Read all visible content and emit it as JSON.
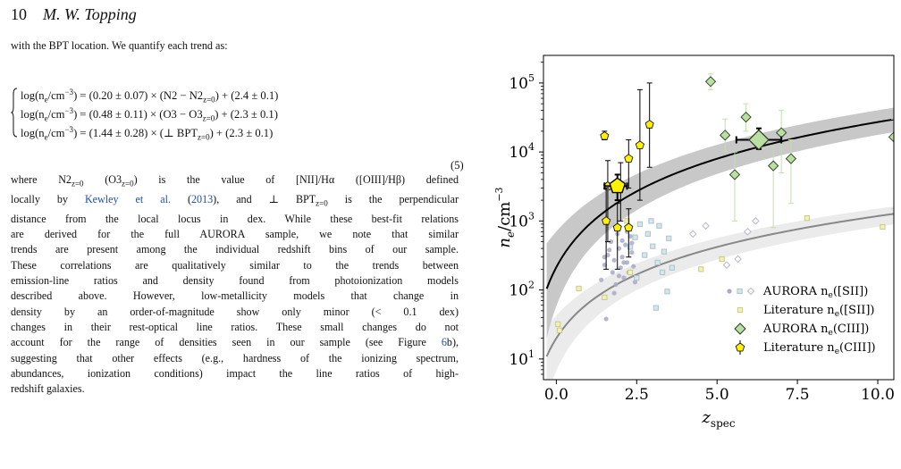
{
  "header": {
    "page_number": "10",
    "author": "M. W. Topping"
  },
  "intro_text": "with the BPT location. We quantify each trend as:",
  "equations": [
    {
      "lhs": "log(n",
      "lhs_sub": "e",
      "lhs_rest": "/cm",
      "lhs_sup": "−3",
      "rhs_a": ") = (0.20 ± 0.07) × (N2 − N2",
      "rhs_sub": "z=0",
      "rhs_b": ") + (2.4 ± 0.1)"
    },
    {
      "lhs": "log(n",
      "lhs_sub": "e",
      "lhs_rest": "/cm",
      "lhs_sup": "−3",
      "rhs_a": ") = (0.48 ± 0.11) × (O3 − O3",
      "rhs_sub": "z=0",
      "rhs_b": ") + (2.3 ± 0.1)"
    },
    {
      "lhs": "log(n",
      "lhs_sub": "e",
      "lhs_rest": "/cm",
      "lhs_sup": "−3",
      "rhs_a": ") = (1.44 ± 0.28) × (⊥ BPT",
      "rhs_sub": "z=0",
      "rhs_b": ") + (2.3 ± 0.1)"
    }
  ],
  "equation_number": "(5)",
  "body_lines": [
    [
      "where N2",
      "z=0",
      " (O3",
      "z=0",
      ") is the value of [NII]/Hα ([OIII]/Hβ) defined"
    ],
    [
      "locally by ",
      "Kewley et al.",
      " (",
      "2013",
      "), and ⊥ BPT",
      "z=0",
      " is the perpendicular"
    ],
    [
      "distance from the local locus in dex. While these best-fit relations"
    ],
    [
      "are derived for the full AURORA sample, we note that similar"
    ],
    [
      "trends are present among the individual redshift bins of our sample."
    ],
    [
      "These correlations are qualitatively similar to the trends between"
    ],
    [
      "emission-line ratios and density found from photoionization models"
    ],
    [
      "described above. However, low-metallicity models that change in"
    ],
    [
      "density by an order-of-magnitude show only minor (< 0.1 dex)"
    ],
    [
      "changes in their rest-optical line ratios. These small changes do not"
    ],
    [
      "account for the range of densities seen in our sample (see Figure ",
      "6",
      "b),"
    ],
    [
      "suggesting that other effects (e.g., hardness of the ionizing spectrum,"
    ],
    [
      "abundances, ionization conditions) impact the line ratios of high-"
    ],
    [
      "redshift galaxies."
    ]
  ],
  "chart_data": {
    "type": "scatter",
    "xlabel": "z",
    "xlabel_sub": "spec",
    "ylabel": "n",
    "ylabel_sub": "e",
    "ylabel_unit": "/cm",
    "ylabel_sup": "−3",
    "x_range": [
      -0.4,
      10.5
    ],
    "y_range_log10": [
      0.7,
      5.4
    ],
    "y_scale": "log",
    "x_ticks": [
      "0.0",
      "2.5",
      "5.0",
      "7.5",
      "10.0"
    ],
    "x_tick_values": [
      0,
      2.5,
      5,
      7.5,
      10
    ],
    "y_ticks": [
      {
        "base": "10",
        "exp": "1",
        "v": 1
      },
      {
        "base": "10",
        "exp": "2",
        "v": 2
      },
      {
        "base": "10",
        "exp": "3",
        "v": 3
      },
      {
        "base": "10",
        "exp": "4",
        "v": 4
      },
      {
        "base": "10",
        "exp": "5",
        "v": 5
      }
    ],
    "colors": {
      "ciii_aurora": "#b9dfa2",
      "ciii_lit": "#fff200",
      "sii_aurora_circle": "#a9a9c8",
      "sii_aurora_square": "#a9c4cc",
      "sii_lit": "#f1f3b5",
      "fit_ciii": "#000000",
      "fit_sii": "#888888",
      "band_ciii": "#c8c8c8",
      "band_sii": "#ebebeb"
    },
    "legend_position": "lower-right",
    "legend": [
      {
        "label": "AURORA n",
        "sub": "e",
        "rest": "([SII])"
      },
      {
        "label": "Literature n",
        "sub": "e",
        "rest": "([SII])"
      },
      {
        "label": "AURORA n",
        "sub": "e",
        "rest": "(CIII])"
      },
      {
        "label": "Literature n",
        "sub": "e",
        "rest": "(CIII])"
      }
    ],
    "aurora_ciii": [
      {
        "z": 4.8,
        "n": 105000,
        "lo": 80000,
        "hi": 135000
      },
      {
        "z": 5.25,
        "n": 17500,
        "lo": 10000,
        "hi": 30000
      },
      {
        "z": 5.55,
        "n": 4700,
        "lo": 1000,
        "hi": 10000
      },
      {
        "z": 5.9,
        "n": 32000,
        "lo": 20000,
        "hi": 50000
      },
      {
        "z": 6.75,
        "n": 6300,
        "lo": 800,
        "hi": 12000
      },
      {
        "z": 7.0,
        "n": 19000,
        "lo": 5000,
        "hi": 40000
      },
      {
        "z": 7.3,
        "n": 8000,
        "lo": 1800,
        "hi": 15000
      },
      {
        "z": 10.5,
        "n": 16500,
        "lo": 1500,
        "hi": 30000
      }
    ],
    "aurora_ciii_stack": {
      "z": 6.3,
      "n": 15000,
      "lo": 11000,
      "hi": 22000,
      "zlo": 5.6,
      "zhi": 7.0
    },
    "lit_ciii": [
      {
        "z": 1.5,
        "n": 17000,
        "lo": 15000,
        "hi": 20000
      },
      {
        "z": 1.6,
        "n": 3200,
        "lo": 500,
        "hi": 7500
      },
      {
        "z": 1.55,
        "n": 1000,
        "lo": 200,
        "hi": 3000
      },
      {
        "z": 1.9,
        "n": 800,
        "lo": 200,
        "hi": 1800
      },
      {
        "z": 2.0,
        "n": 3300,
        "lo": 1000,
        "hi": 7000
      },
      {
        "z": 2.25,
        "n": 800,
        "lo": 300,
        "hi": 1500
      },
      {
        "z": 2.25,
        "n": 8000,
        "lo": 3000,
        "hi": 15000
      },
      {
        "z": 2.6,
        "n": 12500,
        "lo": 2000,
        "hi": 80000
      },
      {
        "z": 2.9,
        "n": 25000,
        "lo": 6000,
        "hi": 100000
      }
    ],
    "lit_ciii_stack": {
      "z": 1.9,
      "n": 3200,
      "lo": 2000,
      "hi": 4700,
      "zlo": 1.5,
      "zhi": 2.2
    },
    "aurora_sii_circles": [
      {
        "z": 1.4,
        "n": 140
      },
      {
        "z": 1.5,
        "n": 230
      },
      {
        "z": 1.6,
        "n": 320
      },
      {
        "z": 1.55,
        "n": 38
      },
      {
        "z": 1.7,
        "n": 500
      },
      {
        "z": 1.75,
        "n": 180
      },
      {
        "z": 1.8,
        "n": 270
      },
      {
        "z": 1.85,
        "n": 120
      },
      {
        "z": 1.9,
        "n": 650
      },
      {
        "z": 1.95,
        "n": 400
      },
      {
        "z": 2.0,
        "n": 210
      },
      {
        "z": 2.05,
        "n": 300
      },
      {
        "z": 2.1,
        "n": 150
      },
      {
        "z": 2.15,
        "n": 450
      },
      {
        "z": 2.2,
        "n": 250
      },
      {
        "z": 2.25,
        "n": 180
      },
      {
        "z": 2.3,
        "n": 600
      },
      {
        "z": 2.35,
        "n": 350
      },
      {
        "z": 2.4,
        "n": 220
      },
      {
        "z": 2.45,
        "n": 130
      },
      {
        "z": 1.65,
        "n": 380
      },
      {
        "z": 2.05,
        "n": 520
      },
      {
        "z": 1.8,
        "n": 90
      },
      {
        "z": 2.2,
        "n": 700
      },
      {
        "z": 2.35,
        "n": 480
      },
      {
        "z": 1.5,
        "n": 300
      },
      {
        "z": 2.1,
        "n": 250
      },
      {
        "z": 1.95,
        "n": 160
      }
    ],
    "aurora_sii_squares": [
      {
        "z": 2.3,
        "n": 420
      },
      {
        "z": 2.45,
        "n": 580
      },
      {
        "z": 2.6,
        "n": 900
      },
      {
        "z": 2.75,
        "n": 320
      },
      {
        "z": 2.85,
        "n": 650
      },
      {
        "z": 3.0,
        "n": 430
      },
      {
        "z": 3.15,
        "n": 250
      },
      {
        "z": 3.2,
        "n": 850
      },
      {
        "z": 3.3,
        "n": 180
      },
      {
        "z": 3.35,
        "n": 360
      },
      {
        "z": 3.45,
        "n": 95
      },
      {
        "z": 3.5,
        "n": 560
      },
      {
        "z": 3.6,
        "n": 210
      },
      {
        "z": 2.95,
        "n": 1000
      },
      {
        "z": 3.1,
        "n": 55
      },
      {
        "z": 2.5,
        "n": 150
      }
    ],
    "aurora_sii_diamonds": [
      {
        "z": 4.25,
        "n": 650
      },
      {
        "z": 4.65,
        "n": 850
      },
      {
        "z": 5.3,
        "n": 230
      },
      {
        "z": 5.65,
        "n": 280
      },
      {
        "z": 5.95,
        "n": 700
      },
      {
        "z": 6.2,
        "n": 1000
      }
    ],
    "lit_sii": [
      {
        "z": 0.05,
        "n": 32
      },
      {
        "z": 0.1,
        "n": 26
      },
      {
        "z": 0.7,
        "n": 105
      },
      {
        "z": 1.5,
        "n": 78
      },
      {
        "z": 2.2,
        "n": 1000
      },
      {
        "z": 2.3,
        "n": 180
      },
      {
        "z": 4.5,
        "n": 200
      },
      {
        "z": 5.15,
        "n": 280
      },
      {
        "z": 7.8,
        "n": 1100
      },
      {
        "z": 10.15,
        "n": 820
      }
    ]
  }
}
